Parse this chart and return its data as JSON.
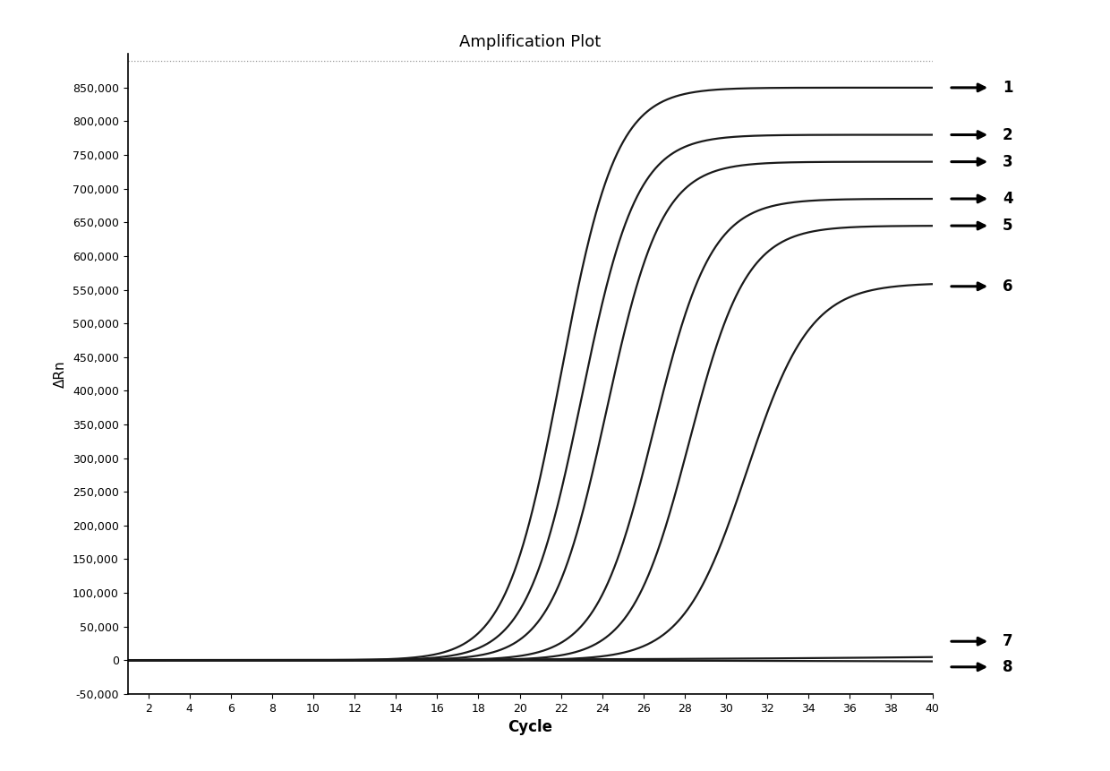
{
  "title": "Amplification Plot",
  "xlabel": "Cycle",
  "ylabel": "ΔRn",
  "xlim": [
    1,
    40
  ],
  "ylim": [
    -50000,
    900000
  ],
  "xticks": [
    2,
    4,
    6,
    8,
    10,
    12,
    14,
    16,
    18,
    20,
    22,
    24,
    26,
    28,
    30,
    32,
    34,
    36,
    38,
    40
  ],
  "yticks": [
    -50000,
    0,
    50000,
    100000,
    150000,
    200000,
    250000,
    300000,
    350000,
    400000,
    450000,
    500000,
    550000,
    600000,
    650000,
    700000,
    750000,
    800000,
    850000
  ],
  "ytick_labels": [
    "-50,000",
    "0",
    "50,000",
    "100,000",
    "150,000",
    "200,000",
    "250,000",
    "300,000",
    "350,000",
    "400,000",
    "450,000",
    "500,000",
    "550,000",
    "600,000",
    "650,000",
    "700,000",
    "750,000",
    "800,000",
    "850,000"
  ],
  "curves": [
    {
      "label": "1",
      "plateau": 850000,
      "midpoint": 22.0,
      "steepness": 0.75,
      "color": "#1a1a1a"
    },
    {
      "label": "2",
      "plateau": 780000,
      "midpoint": 23.0,
      "steepness": 0.75,
      "color": "#1a1a1a"
    },
    {
      "label": "3",
      "plateau": 740000,
      "midpoint": 24.2,
      "steepness": 0.75,
      "color": "#1a1a1a"
    },
    {
      "label": "4",
      "plateau": 685000,
      "midpoint": 26.5,
      "steepness": 0.72,
      "color": "#1a1a1a"
    },
    {
      "label": "5",
      "plateau": 645000,
      "midpoint": 28.2,
      "steepness": 0.72,
      "color": "#1a1a1a"
    },
    {
      "label": "6",
      "plateau": 560000,
      "midpoint": 31.0,
      "steepness": 0.65,
      "color": "#1a1a1a"
    },
    {
      "label": "7",
      "plateau": 28000,
      "midpoint": 60.0,
      "steepness": 0.08,
      "color": "#1a1a1a"
    },
    {
      "label": "8",
      "plateau": -10000,
      "midpoint": 60.0,
      "steepness": 0.08,
      "color": "#1a1a1a"
    }
  ],
  "arrow_y_positions": [
    850000,
    780000,
    740000,
    685000,
    645000,
    555000,
    28000,
    -10000
  ],
  "arrow_labels": [
    "1",
    "2",
    "3",
    "4",
    "5",
    "6",
    "7",
    "8"
  ],
  "background_color": "#ffffff",
  "line_color": "#1a1a1a",
  "line_width": 1.6,
  "figsize": [
    12.4,
    8.61
  ],
  "dpi": 100,
  "top_dot_line_y": 890000
}
